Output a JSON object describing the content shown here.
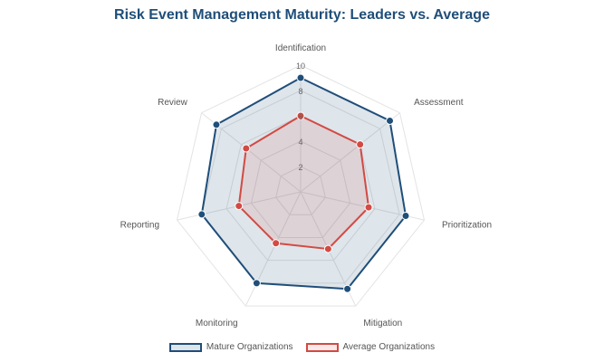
{
  "title": "Risk Event Management Maturity: Leaders vs. Average",
  "chart_data": {
    "type": "radar",
    "title": "Risk Event Management Maturity: Leaders vs. Average",
    "categories": [
      "Identification",
      "Assessment",
      "Prioritization",
      "Mitigation",
      "Monitoring",
      "Reporting",
      "Review"
    ],
    "rlim": [
      0,
      10
    ],
    "ticks": [
      "2",
      "4",
      "6",
      "8",
      "10"
    ],
    "tick_values": [
      2,
      4,
      6,
      8,
      10
    ],
    "grid": true,
    "legend_position": "bottom",
    "series": [
      {
        "name": "Mature Organizations",
        "values": [
          9,
          9,
          8.5,
          8.5,
          8,
          8,
          8.5
        ],
        "color": "#1f4e79",
        "fill": "rgba(31,78,121,0.15)"
      },
      {
        "name": "Average Organizations",
        "values": [
          6,
          6,
          5.5,
          5,
          4.5,
          5,
          5.5
        ],
        "color": "#d24a43",
        "fill": "rgba(210,74,67,0.12)"
      }
    ]
  }
}
